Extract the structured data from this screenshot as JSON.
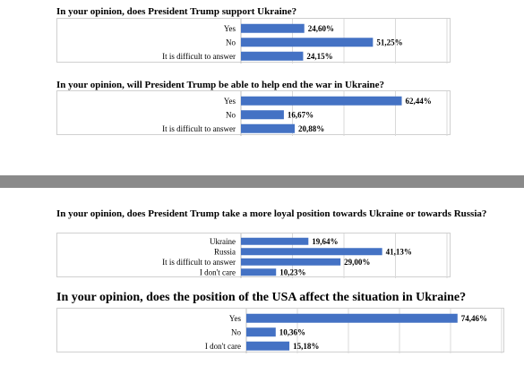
{
  "accent_color": "#4472c4",
  "chart_data": [
    {
      "type": "bar",
      "orientation": "horizontal",
      "title": "In your opinion, does President Trump support Ukraine?",
      "categories": [
        "Yes",
        "No",
        "It is difficult to answer"
      ],
      "values": [
        24.6,
        51.25,
        24.15
      ],
      "value_labels": [
        "24,60%",
        "51,25%",
        "24,15%"
      ],
      "xlim": [
        0,
        80
      ],
      "grid": true
    },
    {
      "type": "bar",
      "orientation": "horizontal",
      "title": "In your opinion, will President Trump be able to help end the war in Ukraine?",
      "categories": [
        "Yes",
        "No",
        "It is difficult to answer"
      ],
      "values": [
        62.44,
        16.67,
        20.88
      ],
      "value_labels": [
        "62,44%",
        "16,67%",
        "20,88%"
      ],
      "xlim": [
        0,
        80
      ],
      "grid": true
    },
    {
      "type": "bar",
      "orientation": "horizontal",
      "title": "In your opinion, does President Trump take a more loyal position towards Ukraine or towards Russia?",
      "categories": [
        "Ukraine",
        "Russia",
        "It is difficult to answer",
        "I don't care"
      ],
      "values": [
        19.64,
        41.13,
        29.0,
        10.23
      ],
      "value_labels": [
        "19,64%",
        "41,13%",
        "29,00%",
        "10,23%"
      ],
      "xlim": [
        0,
        60
      ],
      "grid": true
    },
    {
      "type": "bar",
      "orientation": "horizontal",
      "title": "In your opinion, does the position of the USA affect the situation in Ukraine?",
      "categories": [
        "Yes",
        "No",
        "I don't care"
      ],
      "values": [
        74.46,
        10.36,
        15.18
      ],
      "value_labels": [
        "74,46%",
        "10,36%",
        "15,18%"
      ],
      "xlim": [
        0,
        90
      ],
      "grid": true
    }
  ]
}
